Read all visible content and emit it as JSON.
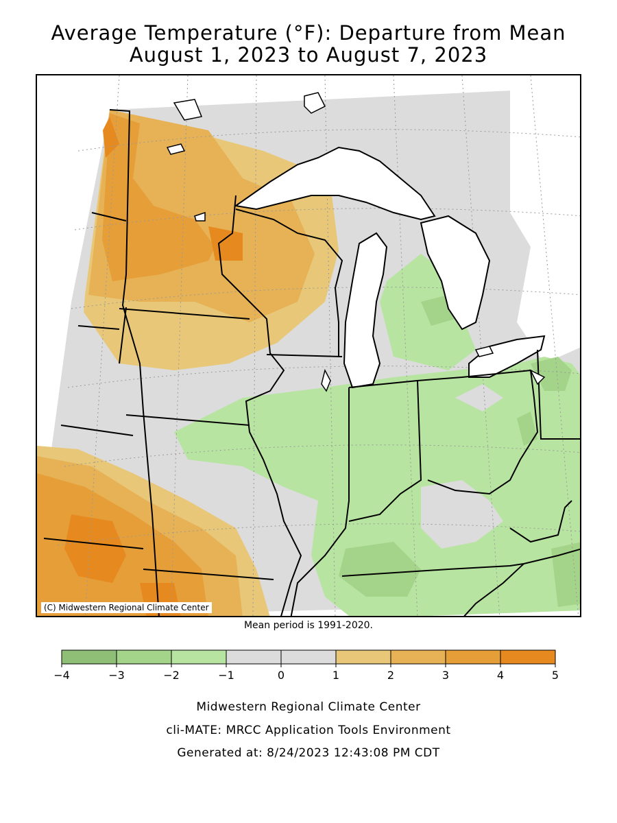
{
  "title_line1": "Average Temperature (°F): Departure from Mean",
  "title_line2": "August 1, 2023 to August 7, 2023",
  "copyright": "(C) Midwestern Regional Climate Center",
  "mean_period": "Mean period is 1991-2020.",
  "legend": {
    "tick_labels": [
      "−4",
      "−3",
      "−2",
      "−1",
      "0",
      "1",
      "2",
      "3",
      "4",
      "5"
    ],
    "colors": [
      "#8fbf77",
      "#a3d48a",
      "#b7e4a0",
      "#dcdcdc",
      "#dcdcdc",
      "#e8c878",
      "#e6b255",
      "#e69e38",
      "#e68a20"
    ]
  },
  "footer": {
    "line1": "Midwestern Regional Climate Center",
    "line2": "cli-MATE: MRCC Application Tools Environment",
    "line3": "Generated at: 8/24/2023 12:43:08 PM CDT"
  }
}
